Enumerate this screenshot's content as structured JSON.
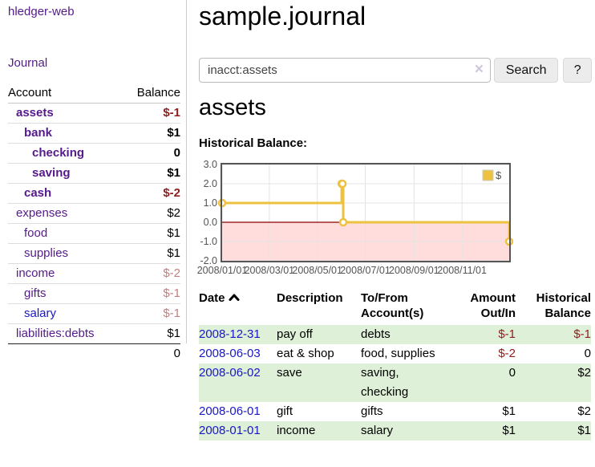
{
  "app": {
    "title": "hledger-web"
  },
  "sidebar": {
    "journal_link": "Journal",
    "table": {
      "account_header": "Account",
      "balance_header": "Balance",
      "rows": [
        {
          "name": "assets",
          "depth": 1,
          "bold": true,
          "link": "purple",
          "balance": "$-1",
          "neg": "strong"
        },
        {
          "name": "bank",
          "depth": 2,
          "bold": true,
          "link": "purple",
          "balance": "$1",
          "neg": "none"
        },
        {
          "name": "checking",
          "depth": 3,
          "bold": true,
          "link": "purple",
          "balance": "0",
          "neg": "none"
        },
        {
          "name": "saving",
          "depth": 3,
          "bold": true,
          "link": "purple",
          "balance": "$1",
          "neg": "none"
        },
        {
          "name": "cash",
          "depth": 2,
          "bold": true,
          "link": "purple",
          "balance": "$-2",
          "neg": "strong"
        },
        {
          "name": "expenses",
          "depth": 1,
          "bold": false,
          "link": "purple",
          "balance": "$2",
          "neg": "none"
        },
        {
          "name": "food",
          "depth": 2,
          "bold": false,
          "link": "purple",
          "balance": "$1",
          "neg": "none"
        },
        {
          "name": "supplies",
          "depth": 2,
          "bold": false,
          "link": "purple",
          "balance": "$1",
          "neg": "none"
        },
        {
          "name": "income",
          "depth": 1,
          "bold": false,
          "link": "purple",
          "balance": "$-2",
          "neg": "faint"
        },
        {
          "name": "gifts",
          "depth": 2,
          "bold": false,
          "link": "purple",
          "balance": "$-1",
          "neg": "faint"
        },
        {
          "name": "salary",
          "depth": 2,
          "bold": false,
          "link": "blue",
          "balance": "$-1",
          "neg": "faint"
        },
        {
          "name": "liabilities:debts",
          "depth": 1,
          "bold": false,
          "link": "purple",
          "balance": "$1",
          "neg": "none"
        }
      ],
      "total": "0"
    }
  },
  "main": {
    "title": "sample.journal",
    "search": {
      "value": "inacct:assets",
      "clear_icon": "×",
      "button_label": "Search",
      "help_label": "?"
    },
    "account_heading": "assets",
    "chart_label": "Historical Balance:"
  },
  "chart_data": {
    "type": "line",
    "style": "steps",
    "title": "Historical Balance",
    "series": [
      {
        "name": "$",
        "color": "#edc240",
        "points": [
          [
            "2008-01-01",
            1
          ],
          [
            "2008-06-01",
            2
          ],
          [
            "2008-06-02",
            2
          ],
          [
            "2008-06-03",
            0
          ],
          [
            "2008-12-31",
            -1
          ]
        ]
      }
    ],
    "xlim": [
      "2008-01-01",
      "2008-12-31"
    ],
    "ylim": [
      -2,
      3
    ],
    "y_ticks": [
      {
        "label": "3.0",
        "value": 3
      },
      {
        "label": "2.0",
        "value": 2
      },
      {
        "label": "1.0",
        "value": 1
      },
      {
        "label": "0.0",
        "value": 0
      },
      {
        "label": "-1.0",
        "value": -1
      },
      {
        "label": "-2.0",
        "value": -2
      }
    ],
    "x_ticks": [
      {
        "label": "2008/01/01",
        "date": "2008-01-01"
      },
      {
        "label": "2008/03/01",
        "date": "2008-03-01"
      },
      {
        "label": "2008/05/01",
        "date": "2008-05-01"
      },
      {
        "label": "2008/07/01",
        "date": "2008-07-01"
      },
      {
        "label": "2008/09/01",
        "date": "2008-09-01"
      },
      {
        "label": "2008/11/01",
        "date": "2008-11-01"
      }
    ],
    "legend_position": "top-right",
    "grid": true,
    "negative_region_color": "#ffdddd",
    "zero_line_color": "#8b0000",
    "point_fill": "#ffffff",
    "grid_color": "#e3e3e3",
    "border_color": "#555555",
    "tick_label_color": "#545454"
  },
  "register": {
    "headers": {
      "date": "Date",
      "description": "Description",
      "tofrom1": "To/From",
      "tofrom2": "Account(s)",
      "amount1": "Amount",
      "amount2": "Out/In",
      "balance1": "Historical",
      "balance2": "Balance"
    },
    "rows": [
      {
        "date": "2008-12-31",
        "description": "pay off",
        "accounts": "debts",
        "amount": "$-1",
        "amount_neg": true,
        "balance": "$-1",
        "balance_neg": true
      },
      {
        "date": "2008-06-03",
        "description": "eat & shop",
        "accounts": "food, supplies",
        "amount": "$-2",
        "amount_neg": true,
        "balance": "0",
        "balance_neg": false
      },
      {
        "date": "2008-06-02",
        "description": "save",
        "accounts": "saving, checking",
        "amount": "0",
        "amount_neg": false,
        "balance": "$2",
        "balance_neg": false
      },
      {
        "date": "2008-06-01",
        "description": "gift",
        "accounts": "gifts",
        "amount": "$1",
        "amount_neg": false,
        "balance": "$2",
        "balance_neg": false
      },
      {
        "date": "2008-01-01",
        "description": "income",
        "accounts": "salary",
        "amount": "$1",
        "amount_neg": false,
        "balance": "$1",
        "balance_neg": false
      }
    ]
  },
  "colors": {
    "link_purple": "#551a8b",
    "link_blue": "#1a16c8",
    "negative_strong": "#8f1d1d",
    "negative_faint": "#c08080",
    "row_green": "#dff0d8",
    "chart_line": "#edc240",
    "chart_negative_region": "#ffdddd",
    "chart_zero_line": "#8b0000"
  }
}
